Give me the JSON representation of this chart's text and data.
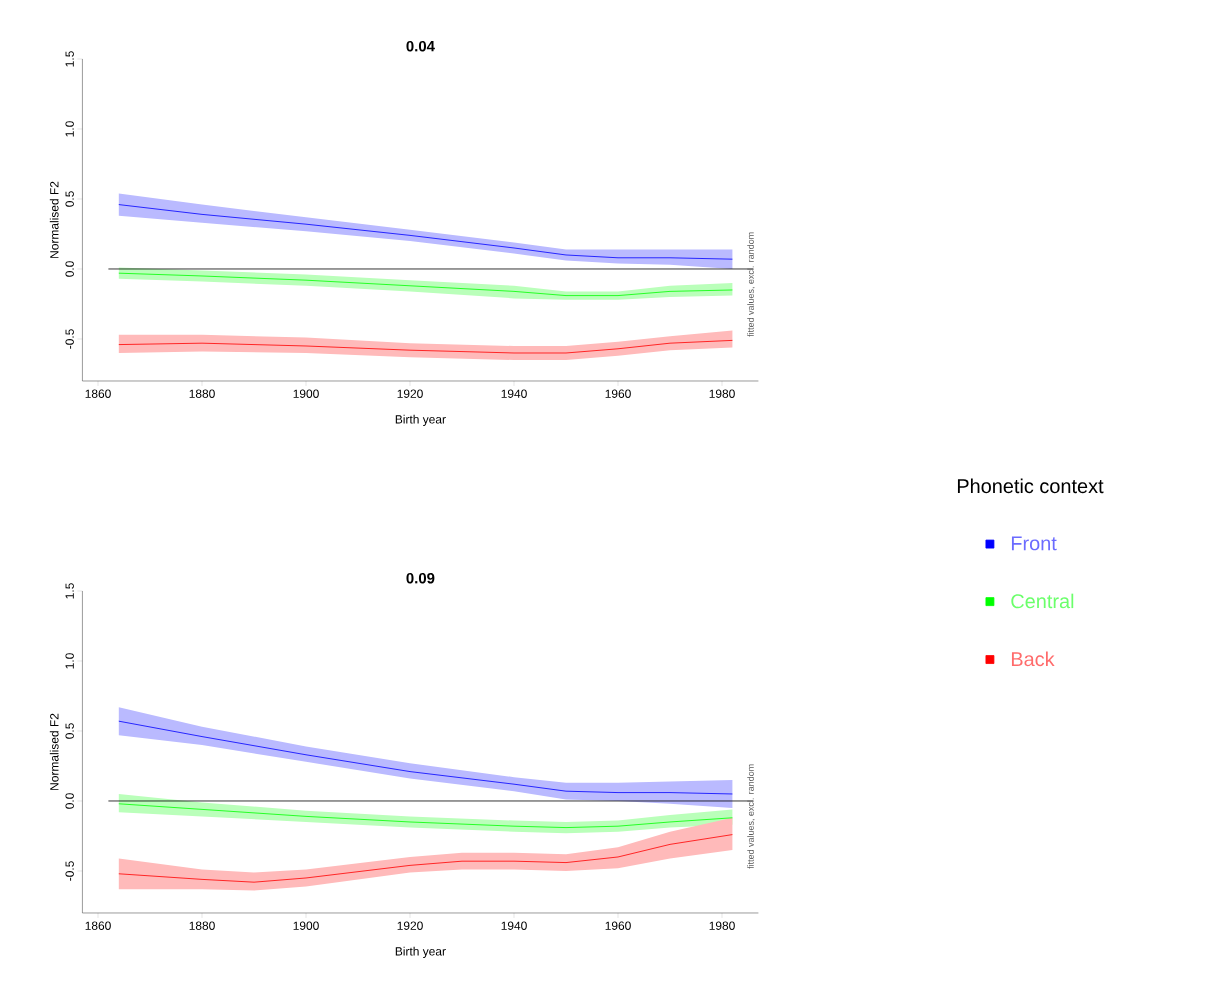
{
  "chart_data": [
    {
      "type": "line",
      "title": "0.04",
      "xlabel": "Birth year",
      "ylabel": "Normalised F2",
      "annotations": [
        "fitted values, excl. random"
      ],
      "legend_title": "Phonetic context",
      "legend": "right",
      "xlim": [
        1857,
        1987
      ],
      "xticks": [
        1860,
        1880,
        1900,
        1920,
        1940,
        1960,
        1980
      ],
      "ylim": [
        -0.8,
        1.5
      ],
      "yticks": [
        {
          "value": -0.5,
          "label": "-0.5"
        },
        {
          "value": 0,
          "label": "0.0"
        },
        {
          "value": 0.5,
          "label": "0.5"
        },
        {
          "value": 1,
          "label": "1.0"
        },
        {
          "value": 1.5,
          "label": "1.5"
        }
      ],
      "ref_lines": [
        {
          "axis": "y",
          "value": 0,
          "color": "#000000"
        }
      ],
      "series": [
        {
          "name": "Front",
          "color": "#0000ff",
          "x": [
            1864,
            1880,
            1900,
            1920,
            1940,
            1950,
            1960,
            1970,
            1982
          ],
          "values": [
            0.46,
            0.39,
            0.32,
            0.24,
            0.15,
            0.1,
            0.08,
            0.08,
            0.07
          ],
          "lower": [
            0.38,
            0.33,
            0.27,
            0.2,
            0.11,
            0.06,
            0.04,
            0.03,
            0.0
          ],
          "upper": [
            0.54,
            0.46,
            0.37,
            0.28,
            0.19,
            0.14,
            0.14,
            0.14,
            0.14
          ]
        },
        {
          "name": "Central",
          "color": "#00ff00",
          "x": [
            1864,
            1880,
            1900,
            1920,
            1940,
            1950,
            1960,
            1970,
            1982
          ],
          "values": [
            -0.03,
            -0.05,
            -0.08,
            -0.12,
            -0.16,
            -0.19,
            -0.19,
            -0.16,
            -0.15
          ],
          "lower": [
            -0.07,
            -0.09,
            -0.12,
            -0.16,
            -0.21,
            -0.22,
            -0.22,
            -0.2,
            -0.19
          ],
          "upper": [
            0.01,
            -0.01,
            -0.04,
            -0.08,
            -0.12,
            -0.16,
            -0.16,
            -0.12,
            -0.1
          ]
        },
        {
          "name": "Back",
          "color": "#ff0000",
          "x": [
            1864,
            1880,
            1900,
            1920,
            1940,
            1950,
            1960,
            1970,
            1982
          ],
          "values": [
            -0.54,
            -0.53,
            -0.55,
            -0.58,
            -0.6,
            -0.6,
            -0.57,
            -0.53,
            -0.51
          ],
          "lower": [
            -0.6,
            -0.59,
            -0.6,
            -0.63,
            -0.65,
            -0.65,
            -0.62,
            -0.58,
            -0.56
          ],
          "upper": [
            -0.47,
            -0.47,
            -0.49,
            -0.53,
            -0.55,
            -0.55,
            -0.52,
            -0.48,
            -0.44
          ]
        }
      ]
    },
    {
      "type": "line",
      "title": "0.09",
      "xlabel": "Birth year",
      "ylabel": "Normalised F2",
      "annotations": [
        "fitted values, excl. random"
      ],
      "xlim": [
        1857,
        1987
      ],
      "xticks": [
        1860,
        1880,
        1900,
        1920,
        1940,
        1960,
        1980
      ],
      "ylim": [
        -0.8,
        1.5
      ],
      "yticks": [
        {
          "value": -0.5,
          "label": "-0.5"
        },
        {
          "value": 0,
          "label": "0.0"
        },
        {
          "value": 0.5,
          "label": "0.5"
        },
        {
          "value": 1,
          "label": "1.0"
        },
        {
          "value": 1.5,
          "label": "1.5"
        }
      ],
      "ref_lines": [
        {
          "axis": "y",
          "value": 0,
          "color": "#000000"
        }
      ],
      "series": [
        {
          "color": "#0000ff",
          "x": [
            1864,
            1880,
            1900,
            1920,
            1940,
            1950,
            1960,
            1970,
            1982
          ],
          "values": [
            0.57,
            0.46,
            0.33,
            0.21,
            0.12,
            0.07,
            0.06,
            0.06,
            0.05
          ],
          "lower": [
            0.47,
            0.4,
            0.28,
            0.16,
            0.07,
            0.01,
            0.0,
            -0.02,
            -0.05
          ],
          "upper": [
            0.67,
            0.53,
            0.39,
            0.27,
            0.17,
            0.13,
            0.13,
            0.14,
            0.15
          ]
        },
        {
          "color": "#00ff00",
          "x": [
            1864,
            1880,
            1900,
            1920,
            1940,
            1950,
            1960,
            1970,
            1982
          ],
          "values": [
            -0.02,
            -0.06,
            -0.11,
            -0.15,
            -0.18,
            -0.19,
            -0.18,
            -0.15,
            -0.12
          ],
          "lower": [
            -0.08,
            -0.11,
            -0.15,
            -0.19,
            -0.22,
            -0.23,
            -0.22,
            -0.19,
            -0.17
          ],
          "upper": [
            0.05,
            -0.01,
            -0.07,
            -0.11,
            -0.14,
            -0.15,
            -0.14,
            -0.1,
            -0.06
          ]
        },
        {
          "color": "#ff0000",
          "x": [
            1864,
            1880,
            1890,
            1900,
            1920,
            1930,
            1940,
            1950,
            1960,
            1970,
            1982
          ],
          "values": [
            -0.52,
            -0.56,
            -0.58,
            -0.55,
            -0.46,
            -0.43,
            -0.43,
            -0.44,
            -0.4,
            -0.31,
            -0.24
          ],
          "lower": [
            -0.63,
            -0.63,
            -0.64,
            -0.61,
            -0.51,
            -0.49,
            -0.49,
            -0.5,
            -0.48,
            -0.41,
            -0.35
          ],
          "upper": [
            -0.41,
            -0.49,
            -0.51,
            -0.49,
            -0.4,
            -0.37,
            -0.37,
            -0.38,
            -0.33,
            -0.22,
            -0.12
          ]
        }
      ]
    }
  ]
}
